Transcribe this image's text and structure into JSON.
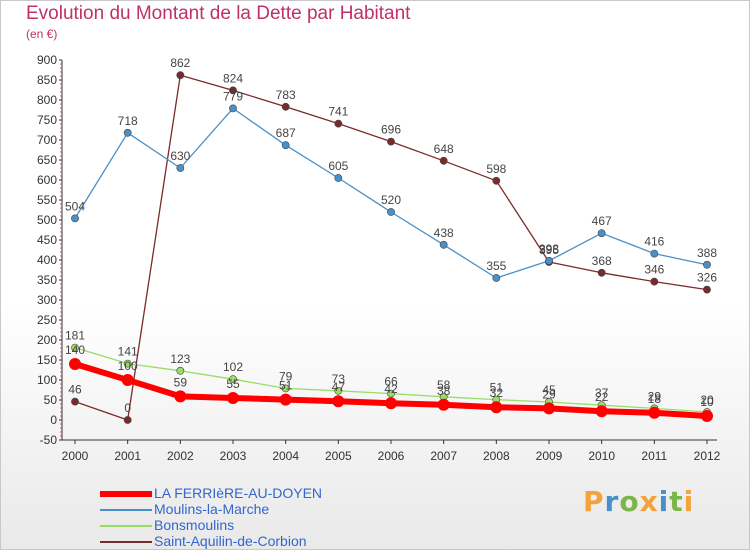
{
  "chart_data": {
    "type": "line",
    "title": "Evolution du Montant de la Dette par Habitant",
    "subtitle": "(en €)",
    "x": [
      "2000",
      "2001",
      "2002",
      "2003",
      "2004",
      "2005",
      "2006",
      "2007",
      "2008",
      "2009",
      "2010",
      "2011",
      "2012"
    ],
    "ylim": [
      -50,
      900
    ],
    "yticks": [
      -50,
      0,
      50,
      100,
      150,
      200,
      250,
      300,
      350,
      400,
      450,
      500,
      550,
      600,
      650,
      700,
      750,
      800,
      850,
      900
    ],
    "grid": false,
    "legend_position": "bottom-left",
    "series": [
      {
        "name": "LA FERRIèRE-AU-DOYEN",
        "color": "#ff0000",
        "values": [
          140,
          100,
          59,
          55,
          51,
          47,
          42,
          38,
          32,
          29,
          22,
          18,
          10
        ]
      },
      {
        "name": "Moulins-la-Marche",
        "color": "#4a90c8",
        "values": [
          504,
          718,
          630,
          779,
          687,
          605,
          520,
          438,
          355,
          398,
          467,
          416,
          388
        ]
      },
      {
        "name": "Bonsmoulins",
        "color": "#99dd66",
        "values": [
          181,
          141,
          123,
          102,
          79,
          73,
          66,
          58,
          51,
          45,
          37,
          29,
          20
        ]
      },
      {
        "name": "Saint-Aquilin-de-Corbion",
        "color": "#7a2a2a",
        "values": [
          46,
          0,
          862,
          824,
          783,
          741,
          696,
          648,
          598,
          395,
          368,
          346,
          326
        ]
      }
    ]
  },
  "logo": {
    "letters": [
      "P",
      "r",
      "o",
      "x",
      "i",
      "t",
      "i"
    ],
    "colors": [
      "#f2a33a",
      "#4a90c8",
      "#7ab648",
      "#f2a33a",
      "#4a90c8",
      "#7ab648",
      "#f2a33a"
    ]
  }
}
